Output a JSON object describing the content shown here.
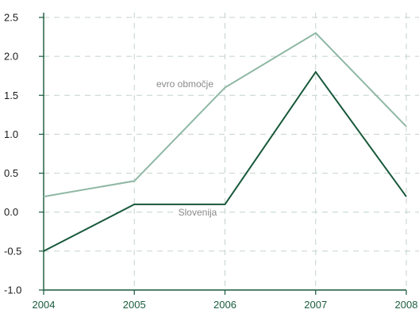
{
  "chart_data": {
    "type": "line",
    "x": [
      "2004",
      "2005",
      "2006",
      "2007",
      "2008"
    ],
    "y_ticks": [
      "2.5",
      "2.0",
      "1.5",
      "1.0",
      "0.5",
      "0.0",
      "-0.5",
      "-1.0"
    ],
    "ylim": [
      -1.0,
      2.5
    ],
    "grid": true,
    "series": [
      {
        "name": "evro območje",
        "values": [
          0.2,
          0.4,
          1.6,
          2.3,
          1.1
        ],
        "color": "#8fb8a4"
      },
      {
        "name": "Slovenija",
        "values": [
          -0.5,
          0.1,
          0.1,
          1.8,
          0.2
        ],
        "color": "#17583a"
      }
    ]
  }
}
